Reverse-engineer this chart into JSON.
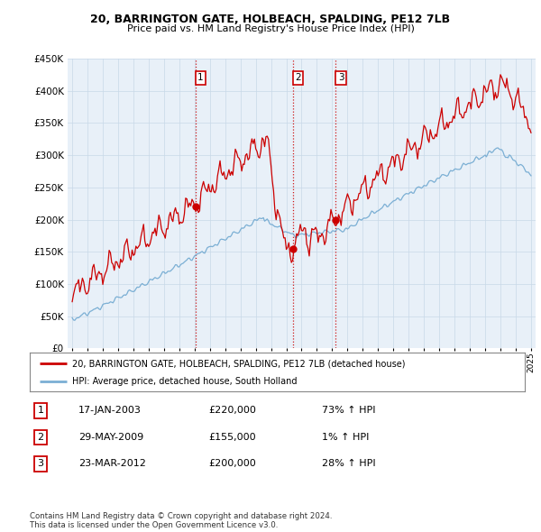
{
  "title": "20, BARRINGTON GATE, HOLBEACH, SPALDING, PE12 7LB",
  "subtitle": "Price paid vs. HM Land Registry's House Price Index (HPI)",
  "legend_line1": "20, BARRINGTON GATE, HOLBEACH, SPALDING, PE12 7LB (detached house)",
  "legend_line2": "HPI: Average price, detached house, South Holland",
  "footer": "Contains HM Land Registry data © Crown copyright and database right 2024.\nThis data is licensed under the Open Government Licence v3.0.",
  "transactions": [
    {
      "num": 1,
      "date": "17-JAN-2003",
      "price": 220000,
      "hpi_pct": "73%",
      "direction": "↑"
    },
    {
      "num": 2,
      "date": "29-MAY-2009",
      "price": 155000,
      "hpi_pct": "1%",
      "direction": "↑"
    },
    {
      "num": 3,
      "date": "23-MAR-2012",
      "price": 200000,
      "hpi_pct": "28%",
      "direction": "↑"
    }
  ],
  "transaction_dates_decimal": [
    2003.05,
    2009.42,
    2012.23
  ],
  "transaction_prices": [
    220000,
    155000,
    200000
  ],
  "hpi_color": "#7bafd4",
  "price_color": "#cc0000",
  "background_color": "#ffffff",
  "chart_bg_color": "#e8f0f8",
  "grid_color": "#c8d8e8",
  "ylim": [
    0,
    450000
  ],
  "xlim_start": 1994.7,
  "xlim_end": 2025.3
}
